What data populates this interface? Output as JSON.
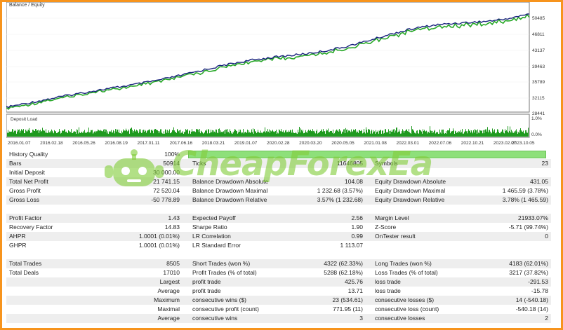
{
  "chart": {
    "legend": "Balance / Equity",
    "deposit_label": "Deposit Load",
    "y_ticks": [
      "50485",
      "46811",
      "43137",
      "39463",
      "35789",
      "32115",
      "28441"
    ],
    "load_ticks": [
      "1.0%",
      "0.0%"
    ],
    "x_ticks": [
      "2016.01.07",
      "2016.02.18",
      "2016.05.26",
      "2016.08.19",
      "2017.01.11",
      "2017.06.16",
      "2018.03.21",
      "2019.01.07",
      "2020.02.28",
      "2020.03.20",
      "2020.05.05",
      "2021.01.08",
      "2022.03.01",
      "2022.07.06",
      "2022.10.21",
      "2023.02.07",
      "2023.10.05"
    ],
    "colors": {
      "balance": "#1a237e",
      "equity": "#27a827",
      "load": "#1f9a1f"
    }
  },
  "watermark": {
    "text": "CheapForexEa",
    "color": "#82cd3c"
  },
  "quality": {
    "label": "History Quality",
    "value": "100%",
    "bar_fill_percent": 100
  },
  "rows": [
    {
      "shade": true,
      "cells": [
        "Bars",
        "50914",
        "Ticks",
        "11646805",
        "Symbols",
        "23"
      ]
    },
    {
      "shade": false,
      "cells": [
        "Initial Deposit",
        "30 000.00",
        "",
        "",
        "",
        ""
      ]
    },
    {
      "shade": true,
      "cells": [
        "Total Net Profit",
        "21 741.15",
        "Balance Drawdown Absolute",
        "104.08",
        "Equity Drawdown Absolute",
        "431.05"
      ]
    },
    {
      "shade": false,
      "cells": [
        "Gross Profit",
        "72 520.04",
        "Balance Drawdown Maximal",
        "1 232.68 (3.57%)",
        "Equity Drawdown Maximal",
        "1 465.59 (3.78%)"
      ]
    },
    {
      "shade": true,
      "cells": [
        "Gross Loss",
        "-50 778.89",
        "Balance Drawdown Relative",
        "3.57% (1 232.68)",
        "Equity Drawdown Relative",
        "3.78% (1 465.59)"
      ]
    },
    {
      "shade": false,
      "cells": [
        "",
        "",
        "",
        "",
        "",
        ""
      ]
    },
    {
      "shade": true,
      "cells": [
        "Profit Factor",
        "1.43",
        "Expected Payoff",
        "2.56",
        "Margin Level",
        "21933.07%"
      ]
    },
    {
      "shade": false,
      "cells": [
        "Recovery Factor",
        "14.83",
        "Sharpe Ratio",
        "1.90",
        "Z-Score",
        "-5.71 (99.74%)"
      ]
    },
    {
      "shade": true,
      "cells": [
        "AHPR",
        "1.0001 (0.01%)",
        "LR Correlation",
        "0.99",
        "OnTester result",
        "0"
      ]
    },
    {
      "shade": false,
      "cells": [
        "GHPR",
        "1.0001 (0.01%)",
        "LR Standard Error",
        "1 113.07",
        "",
        ""
      ]
    },
    {
      "shade": false,
      "cells": [
        "",
        "",
        "",
        "",
        "",
        ""
      ]
    },
    {
      "shade": true,
      "cells": [
        "Total Trades",
        "8505",
        "Short Trades (won %)",
        "4322 (62.33%)",
        "Long Trades (won %)",
        "4183 (62.01%)"
      ]
    },
    {
      "shade": false,
      "cells": [
        "Total Deals",
        "17010",
        "Profit Trades (% of total)",
        "5288 (62.18%)",
        "Loss Trades (% of total)",
        "3217 (37.82%)"
      ]
    },
    {
      "shade": true,
      "right": true,
      "cells": [
        "Largest",
        "",
        "profit trade",
        "425.76",
        "loss trade",
        "-291.53"
      ]
    },
    {
      "shade": false,
      "right": true,
      "cells": [
        "Average",
        "",
        "profit trade",
        "13.71",
        "loss trade",
        "-15.78"
      ]
    },
    {
      "shade": true,
      "right": true,
      "cells": [
        "Maximum",
        "",
        "consecutive wins ($)",
        "23 (534.61)",
        "consecutive losses ($)",
        "14 (-540.18)"
      ]
    },
    {
      "shade": false,
      "right": true,
      "cells": [
        "Maximal",
        "",
        "consecutive profit (count)",
        "771.95 (11)",
        "consecutive loss (count)",
        "-540.18 (14)"
      ]
    },
    {
      "shade": true,
      "right": true,
      "cells": [
        "Average",
        "",
        "consecutive wins",
        "3",
        "consecutive losses",
        "2"
      ]
    }
  ]
}
